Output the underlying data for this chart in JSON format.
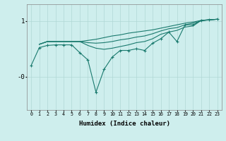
{
  "xlabel": "Humidex (Indice chaleur)",
  "bg_color": "#ceeeed",
  "line_color": "#1a7a6e",
  "grid_color": "#b0d8d5",
  "xlim": [
    -0.5,
    23.5
  ],
  "ylim": [
    -0.6,
    1.3
  ],
  "ytick_vals": [
    1.0,
    0.0
  ],
  "ytick_labels": [
    "1",
    "-0"
  ],
  "series_nomarker": [
    [
      null,
      0.58,
      0.63,
      0.63,
      0.63,
      0.63,
      0.63,
      0.65,
      0.67,
      0.7,
      0.73,
      0.75,
      0.78,
      0.8,
      0.82,
      0.84,
      0.87,
      0.9,
      0.93,
      0.96,
      0.98,
      1.01,
      1.02,
      1.03
    ],
    [
      null,
      0.58,
      0.63,
      0.63,
      0.63,
      0.63,
      0.63,
      0.61,
      0.6,
      0.61,
      0.63,
      0.66,
      0.68,
      0.71,
      0.73,
      0.77,
      0.82,
      0.86,
      0.88,
      0.93,
      0.96,
      1.0,
      1.02,
      1.03
    ],
    [
      null,
      0.58,
      0.63,
      0.63,
      0.63,
      0.63,
      0.63,
      0.56,
      0.51,
      0.49,
      0.51,
      0.54,
      0.57,
      0.61,
      0.63,
      0.68,
      0.76,
      0.8,
      0.83,
      0.89,
      0.91,
      1.01,
      1.02,
      1.03
    ]
  ],
  "series_marker": [
    0.2,
    0.52,
    0.56,
    0.57,
    0.57,
    0.57,
    0.43,
    0.3,
    -0.28,
    0.13,
    0.35,
    0.47,
    0.47,
    0.5,
    0.47,
    0.6,
    0.68,
    0.8,
    0.63,
    0.93,
    0.93,
    1.01,
    1.02,
    1.03
  ]
}
